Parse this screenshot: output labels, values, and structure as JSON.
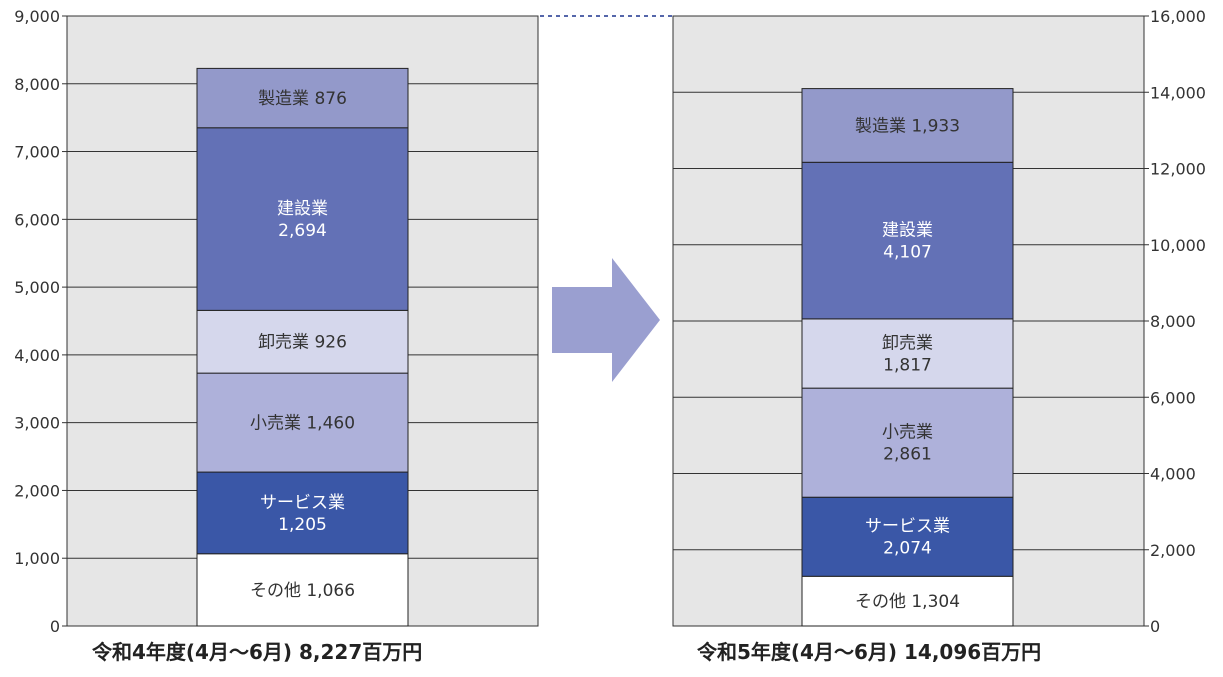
{
  "chart_data": {
    "type": "bar",
    "stacked": true,
    "grid": true,
    "panels": [
      {
        "caption": "令和4年度(4月～6月) 8,227百万円",
        "y_axis_side": "left",
        "ylim": [
          0,
          9000
        ],
        "ticks": [
          "0",
          "1,000",
          "2,000",
          "3,000",
          "4,000",
          "5,000",
          "6,000",
          "7,000",
          "8,000",
          "9,000"
        ],
        "tick_values": [
          0,
          1000,
          2000,
          3000,
          4000,
          5000,
          6000,
          7000,
          8000,
          9000
        ],
        "segments": [
          {
            "name": "その他",
            "value": 1066,
            "display_value": "1,066",
            "label_lines": [
              "その他 1,066"
            ],
            "color": "#ffffff",
            "text_color": "#333333"
          },
          {
            "name": "サービス業",
            "value": 1205,
            "display_value": "1,205",
            "label_lines": [
              "サービス業",
              "1,205"
            ],
            "color": "#3a57a7",
            "text_color": "#ffffff"
          },
          {
            "name": "小売業",
            "value": 1460,
            "display_value": "1,460",
            "label_lines": [
              "小売業 1,460"
            ],
            "color": "#aeb1da",
            "text_color": "#333333"
          },
          {
            "name": "卸売業",
            "value": 926,
            "display_value": "926",
            "label_lines": [
              "卸売業 926"
            ],
            "color": "#d5d7ec",
            "text_color": "#333333"
          },
          {
            "name": "建設業",
            "value": 2694,
            "display_value": "2,694",
            "label_lines": [
              "建設業",
              "2,694"
            ],
            "color": "#6371b6",
            "text_color": "#ffffff"
          },
          {
            "name": "製造業",
            "value": 876,
            "display_value": "876",
            "label_lines": [
              "製造業 876"
            ],
            "color": "#9399ca",
            "text_color": "#333333"
          }
        ]
      },
      {
        "caption": "令和5年度(4月～6月) 14,096百万円",
        "y_axis_side": "right",
        "ylim": [
          0,
          16000
        ],
        "ticks": [
          "0",
          "2,000",
          "4,000",
          "6,000",
          "8,000",
          "10,000",
          "12,000",
          "14,000",
          "16,000"
        ],
        "tick_values": [
          0,
          2000,
          4000,
          6000,
          8000,
          10000,
          12000,
          14000,
          16000
        ],
        "segments": [
          {
            "name": "その他",
            "value": 1304,
            "display_value": "1,304",
            "label_lines": [
              "その他 1,304"
            ],
            "color": "#ffffff",
            "text_color": "#333333"
          },
          {
            "name": "サービス業",
            "value": 2074,
            "display_value": "2,074",
            "label_lines": [
              "サービス業",
              "2,074"
            ],
            "color": "#3a57a7",
            "text_color": "#ffffff"
          },
          {
            "name": "小売業",
            "value": 2861,
            "display_value": "2,861",
            "label_lines": [
              "小売業",
              "2,861"
            ],
            "color": "#aeb1da",
            "text_color": "#333333"
          },
          {
            "name": "卸売業",
            "value": 1817,
            "display_value": "1,817",
            "label_lines": [
              "卸売業",
              "1,817"
            ],
            "color": "#d5d7ec",
            "text_color": "#333333"
          },
          {
            "name": "建設業",
            "value": 4107,
            "display_value": "4,107",
            "label_lines": [
              "建設業",
              "4,107"
            ],
            "color": "#6371b6",
            "text_color": "#ffffff"
          },
          {
            "name": "製造業",
            "value": 1933,
            "display_value": "1,933",
            "label_lines": [
              "製造業 1,933"
            ],
            "color": "#9399ca",
            "text_color": "#333333"
          }
        ]
      }
    ]
  },
  "colors": {
    "plot_background": "#e6e6e6",
    "grid": "#333333",
    "arrow": "#9a9fd0",
    "connector": "#5566aa"
  },
  "icons": {
    "transition_arrow": "right-arrow-icon"
  }
}
